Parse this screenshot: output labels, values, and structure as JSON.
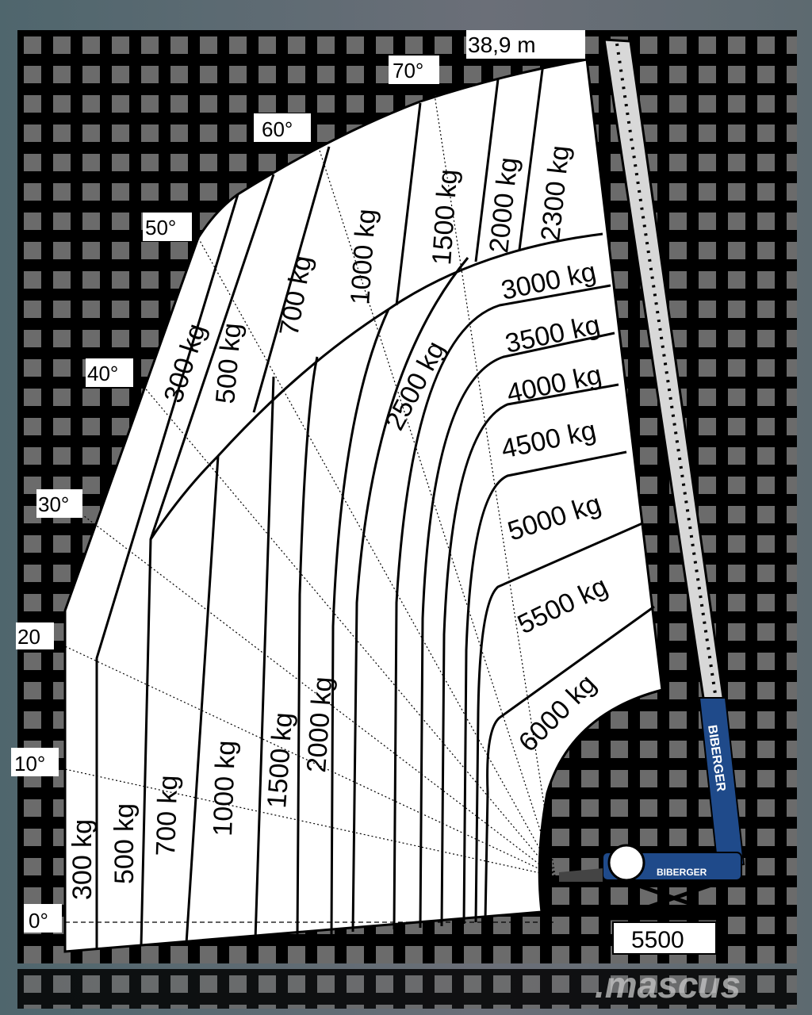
{
  "chart": {
    "max_height": "38,9 m",
    "counterweight": "5500",
    "angles": [
      "0°",
      "10°",
      "20",
      "30°",
      "40°",
      "50°",
      "60°",
      "70°"
    ],
    "upper_loads": [
      "300 kg",
      "500 kg",
      "700 kg",
      "1000 kg",
      "1500 kg",
      "2000 kg",
      "2300 kg"
    ],
    "lower_loads": [
      "300 kg",
      "500 kg",
      "700 kg",
      "1000 kg",
      "1500 kg",
      "2000 kg"
    ],
    "right_loads": [
      "2500 kg",
      "3000 kg",
      "3500 kg",
      "4000 kg",
      "4500 kg",
      "5000 kg",
      "5500 kg",
      "6000 kg"
    ],
    "brand": "BIBERGER",
    "watermark": ".mascus"
  },
  "colors": {
    "boom": "#1f4a8a",
    "grid": "#000000",
    "cell": "#6b6b6b",
    "region": "#ffffff"
  }
}
